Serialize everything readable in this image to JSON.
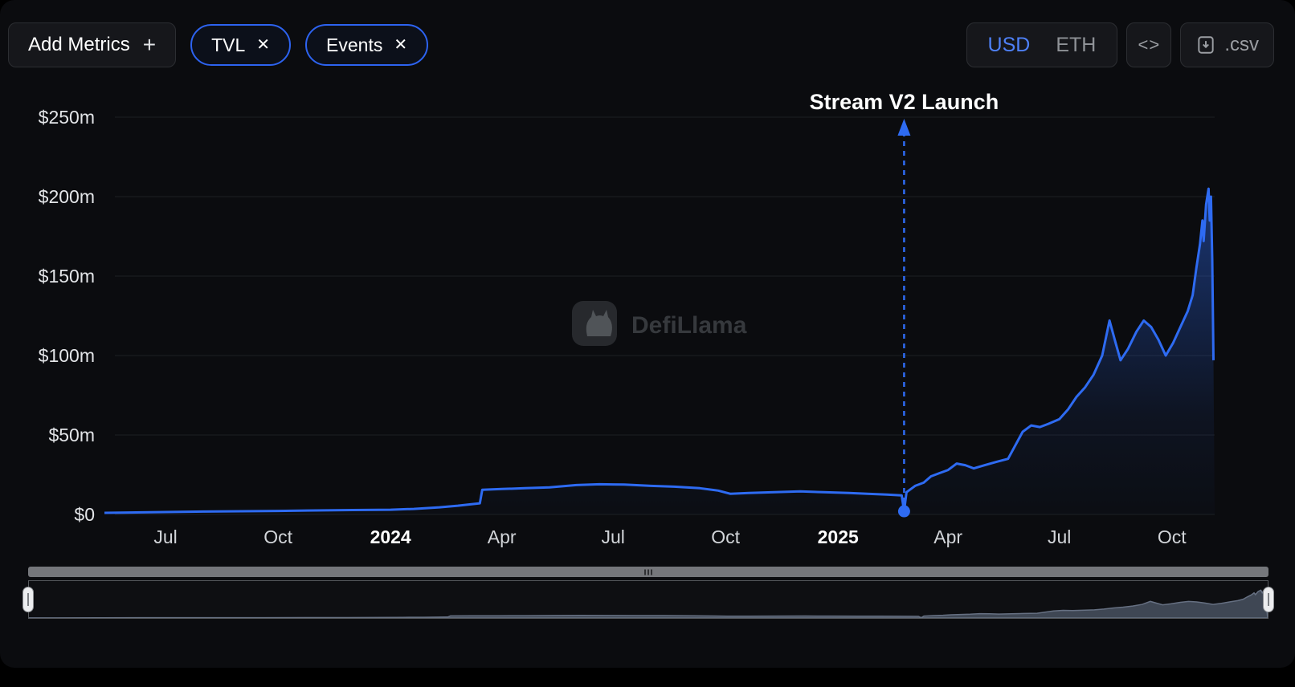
{
  "toolbar": {
    "add_metrics_label": "Add Metrics",
    "plus_icon": "+",
    "close_icon": "✕",
    "pills": [
      {
        "label": "TVL"
      },
      {
        "label": "Events"
      }
    ],
    "currency_toggle": {
      "options": [
        "USD",
        "ETH"
      ],
      "selected": "USD"
    },
    "embed_icon": "<>",
    "csv_label": ".csv"
  },
  "watermark": {
    "label": "DefiLlama"
  },
  "colors": {
    "accent_blue": "#2d63f0",
    "line_blue": "#2e6bf2",
    "usd_selected": "#4e80f7",
    "background": "#0b0c0f"
  },
  "chart_data": {
    "type": "area",
    "title": "",
    "ylabel": "",
    "xlabel": "",
    "ylim": [
      0,
      250
    ],
    "x_range": [
      "2023-05-12",
      "2025-11-05"
    ],
    "yticks": [
      0,
      50,
      100,
      150,
      200,
      250
    ],
    "ytick_labels": [
      "$0",
      "$50m",
      "$100m",
      "$150m",
      "$200m",
      "$250m"
    ],
    "xticks": [
      {
        "date": "2023-07-01",
        "label": "Jul",
        "bold": false
      },
      {
        "date": "2023-10-01",
        "label": "Oct",
        "bold": false
      },
      {
        "date": "2024-01-01",
        "label": "2024",
        "bold": true
      },
      {
        "date": "2024-04-01",
        "label": "Apr",
        "bold": false
      },
      {
        "date": "2024-07-01",
        "label": "Jul",
        "bold": false
      },
      {
        "date": "2024-10-01",
        "label": "Oct",
        "bold": false
      },
      {
        "date": "2025-01-01",
        "label": "2025",
        "bold": true
      },
      {
        "date": "2025-04-01",
        "label": "Apr",
        "bold": false
      },
      {
        "date": "2025-07-01",
        "label": "Jul",
        "bold": false
      },
      {
        "date": "2025-10-01",
        "label": "Oct",
        "bold": false
      }
    ],
    "annotation": {
      "label": "Stream V2 Launch",
      "date": "2025-02-24",
      "value": 2
    },
    "grid": true,
    "legend": false,
    "series": [
      {
        "name": "TVL (USD millions)",
        "color": "#2e6bf2",
        "points": [
          [
            "2023-05-12",
            1
          ],
          [
            "2023-06-01",
            1.2
          ],
          [
            "2023-07-01",
            1.5
          ],
          [
            "2023-08-01",
            1.8
          ],
          [
            "2023-09-01",
            2
          ],
          [
            "2023-10-01",
            2.2
          ],
          [
            "2023-11-01",
            2.5
          ],
          [
            "2023-12-01",
            2.8
          ],
          [
            "2024-01-01",
            3
          ],
          [
            "2024-01-20",
            3.5
          ],
          [
            "2024-02-10",
            4.5
          ],
          [
            "2024-02-25",
            5.5
          ],
          [
            "2024-03-08",
            6.5
          ],
          [
            "2024-03-14",
            7
          ],
          [
            "2024-03-16",
            15.5
          ],
          [
            "2024-04-01",
            16
          ],
          [
            "2024-04-20",
            16.5
          ],
          [
            "2024-05-10",
            17
          ],
          [
            "2024-06-01",
            18.5
          ],
          [
            "2024-06-20",
            19
          ],
          [
            "2024-07-10",
            18.8
          ],
          [
            "2024-08-01",
            18
          ],
          [
            "2024-08-20",
            17.5
          ],
          [
            "2024-09-10",
            16.5
          ],
          [
            "2024-09-25",
            15
          ],
          [
            "2024-10-05",
            13
          ],
          [
            "2024-10-20",
            13.5
          ],
          [
            "2024-11-10",
            14
          ],
          [
            "2024-12-01",
            14.5
          ],
          [
            "2024-12-20",
            14
          ],
          [
            "2025-01-10",
            13.5
          ],
          [
            "2025-01-25",
            13
          ],
          [
            "2025-02-10",
            12.5
          ],
          [
            "2025-02-22",
            12
          ],
          [
            "2025-02-24",
            2
          ],
          [
            "2025-02-26",
            14
          ],
          [
            "2025-03-05",
            18
          ],
          [
            "2025-03-12",
            20
          ],
          [
            "2025-03-18",
            24
          ],
          [
            "2025-03-25",
            26
          ],
          [
            "2025-04-01",
            28
          ],
          [
            "2025-04-08",
            32
          ],
          [
            "2025-04-15",
            31
          ],
          [
            "2025-04-22",
            29
          ],
          [
            "2025-05-01",
            31
          ],
          [
            "2025-05-10",
            33
          ],
          [
            "2025-05-20",
            35
          ],
          [
            "2025-06-01",
            52
          ],
          [
            "2025-06-08",
            56
          ],
          [
            "2025-06-15",
            55
          ],
          [
            "2025-06-22",
            57
          ],
          [
            "2025-07-01",
            60
          ],
          [
            "2025-07-08",
            66
          ],
          [
            "2025-07-15",
            74
          ],
          [
            "2025-07-22",
            80
          ],
          [
            "2025-07-29",
            88
          ],
          [
            "2025-08-05",
            100
          ],
          [
            "2025-08-11",
            122
          ],
          [
            "2025-08-16",
            108
          ],
          [
            "2025-08-20",
            97
          ],
          [
            "2025-08-26",
            104
          ],
          [
            "2025-09-02",
            115
          ],
          [
            "2025-09-08",
            122
          ],
          [
            "2025-09-14",
            118
          ],
          [
            "2025-09-20",
            110
          ],
          [
            "2025-09-26",
            100
          ],
          [
            "2025-10-02",
            108
          ],
          [
            "2025-10-08",
            118
          ],
          [
            "2025-10-14",
            128
          ],
          [
            "2025-10-18",
            138
          ],
          [
            "2025-10-21",
            155
          ],
          [
            "2025-10-24",
            170
          ],
          [
            "2025-10-26",
            185
          ],
          [
            "2025-10-27",
            172
          ],
          [
            "2025-10-29",
            195
          ],
          [
            "2025-10-31",
            205
          ],
          [
            "2025-11-01",
            185
          ],
          [
            "2025-11-02",
            200
          ],
          [
            "2025-11-03",
            160
          ],
          [
            "2025-11-04",
            97
          ]
        ]
      }
    ]
  }
}
